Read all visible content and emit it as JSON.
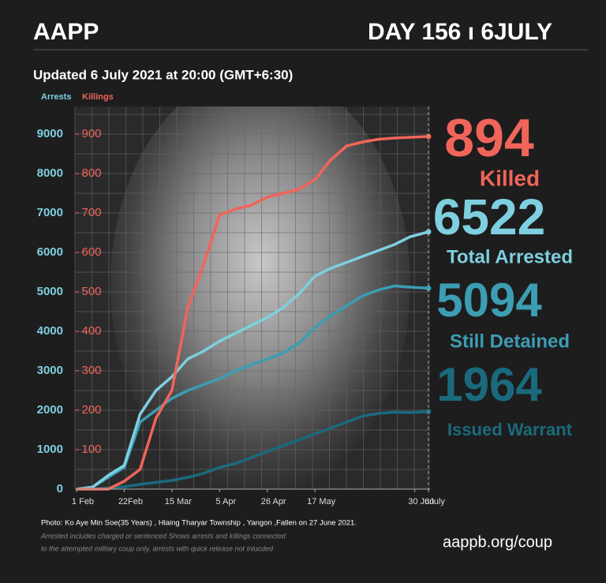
{
  "header": {
    "brand": "AAPP",
    "day": "DAY 156 ı 6JULY"
  },
  "updated": "Updated 6 July 2021 at 20:00 (GMT+6:30)",
  "chart_data": {
    "type": "line",
    "ylabel": "Arrests",
    "y2label": "Killings",
    "x": [
      0,
      7,
      14,
      21,
      28,
      35,
      42,
      49,
      56,
      63,
      70,
      77,
      84,
      91,
      98,
      105,
      112,
      119,
      126,
      133,
      140,
      147,
      155
    ],
    "xlim": [
      0,
      155
    ],
    "xticks": [
      {
        "value": 0,
        "label": "1 Feb"
      },
      {
        "value": 21,
        "label": "22Feb"
      },
      {
        "value": 42,
        "label": "15 Mar"
      },
      {
        "value": 63,
        "label": "5 Apr"
      },
      {
        "value": 84,
        "label": "26 Apr"
      },
      {
        "value": 105,
        "label": "17 May"
      },
      {
        "value": 149,
        "label": "30 Jun"
      },
      {
        "value": 155,
        "label": "6July"
      }
    ],
    "ylim": [
      0,
      9000
    ],
    "yticks": [
      0,
      1000,
      2000,
      3000,
      4000,
      5000,
      6000,
      7000,
      8000,
      9000
    ],
    "y2lim": [
      0,
      900
    ],
    "y2ticks": [
      100,
      200,
      300,
      400,
      500,
      600,
      700,
      800,
      900
    ],
    "grid": true,
    "series": [
      {
        "name": "Killed",
        "color": "#f0655a",
        "axis": "y2",
        "values": [
          0,
          0,
          0,
          20,
          50,
          180,
          250,
          460,
          570,
          695,
          710,
          720,
          740,
          750,
          760,
          785,
          835,
          870,
          880,
          887,
          890,
          892,
          894
        ]
      },
      {
        "name": "Total Arrested",
        "color": "#7ecfe0",
        "values": [
          0,
          50,
          350,
          600,
          1900,
          2500,
          2850,
          3300,
          3500,
          3750,
          3950,
          4150,
          4350,
          4600,
          4950,
          5400,
          5600,
          5750,
          5900,
          6050,
          6200,
          6400,
          6522
        ]
      },
      {
        "name": "Still Detained",
        "color": "#3c9db3",
        "values": [
          0,
          50,
          300,
          550,
          1700,
          2000,
          2300,
          2500,
          2650,
          2800,
          3000,
          3150,
          3300,
          3450,
          3700,
          4100,
          4400,
          4650,
          4900,
          5050,
          5150,
          5120,
          5094
        ]
      },
      {
        "name": "Issued Warrant",
        "color": "#1a6a7e",
        "values": [
          0,
          0,
          30,
          60,
          120,
          170,
          220,
          300,
          400,
          550,
          650,
          800,
          950,
          1100,
          1250,
          1400,
          1550,
          1700,
          1850,
          1920,
          1950,
          1940,
          1964
        ]
      }
    ]
  },
  "footer": {
    "photo": "Photo:  Ko Aye Min Soe(35 Years) ,  Hlaing Tharyar Township  , Yangon ,Fallen on 27 June 2021.",
    "note1": "Arrested includes charged or sentenced Shows arrests and killings connected",
    "note2": "to the attempted military coup only, arrests with quick release not inlucded",
    "url": "aappb.org/coup"
  }
}
